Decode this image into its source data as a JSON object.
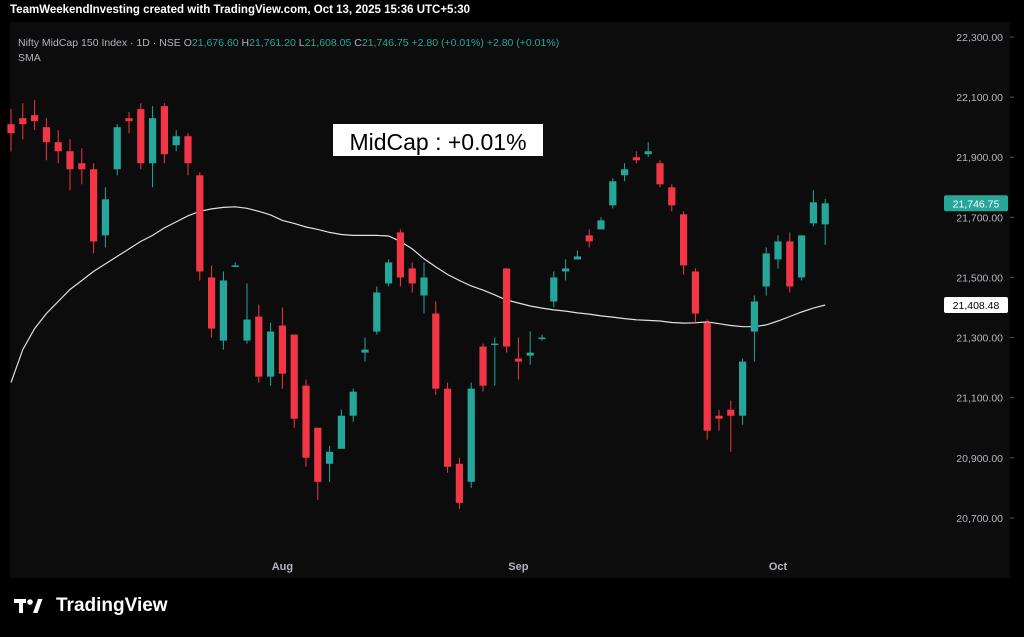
{
  "header": {
    "attribution": "TeamWeekendInvesting created with TradingView.com, Oct 13, 2025 15:36 UTC+5:30"
  },
  "legend": {
    "symbol": "Nifty MidCap 150 Index · 1D · NSE",
    "open_label": "O",
    "open": "21,676.60",
    "high_label": "H",
    "high": "21,761.20",
    "low_label": "L",
    "low": "21,608.05",
    "close_label": "C",
    "close": "21,746.75",
    "change": "+2.80 (+0.01%)",
    "change2": "+2.80 (+0.01%)",
    "indicator": "SMA"
  },
  "colors": {
    "up": "#26a69a",
    "down": "#f23645",
    "sma": "#e0e0e0",
    "background": "#0c0c0c"
  },
  "branding": {
    "logo_icon": "tradingview-logo-icon",
    "logo_text": "TradingView"
  },
  "chart_data": {
    "type": "candlestick",
    "title": "MidCap : +0.01%",
    "ylim": [
      20500,
      22350
    ],
    "y_ticks": [
      20700,
      20900,
      21100,
      21300,
      21500,
      21700,
      21900,
      22100,
      22300
    ],
    "y_tick_labels": [
      "20,700.00",
      "20,900.00",
      "21,100.00",
      "21,300.00",
      "21,500.00",
      "21,700.00",
      "21,900.00",
      "22,100.00",
      "22,300.00"
    ],
    "x_labels": [
      {
        "label": "Aug",
        "index": 23
      },
      {
        "label": "Sep",
        "index": 43
      },
      {
        "label": "Oct",
        "index": 65
      }
    ],
    "price_tags": [
      {
        "value": 21746.75,
        "label": "21,746.75",
        "style": "last-price"
      },
      {
        "value": 21408.48,
        "label": "21,408.48",
        "style": "sma"
      }
    ],
    "candles": [
      {
        "o": 22010,
        "h": 22060,
        "l": 21920,
        "c": 21980
      },
      {
        "o": 22030,
        "h": 22080,
        "l": 21960,
        "c": 22010
      },
      {
        "o": 22040,
        "h": 22090,
        "l": 21990,
        "c": 22020
      },
      {
        "o": 22000,
        "h": 22030,
        "l": 21890,
        "c": 21950
      },
      {
        "o": 21950,
        "h": 21990,
        "l": 21880,
        "c": 21920
      },
      {
        "o": 21920,
        "h": 21960,
        "l": 21790,
        "c": 21860
      },
      {
        "o": 21880,
        "h": 21930,
        "l": 21810,
        "c": 21860
      },
      {
        "o": 21860,
        "h": 21880,
        "l": 21580,
        "c": 21620
      },
      {
        "o": 21640,
        "h": 21800,
        "l": 21600,
        "c": 21760
      },
      {
        "o": 21860,
        "h": 22010,
        "l": 21840,
        "c": 22000
      },
      {
        "o": 22030,
        "h": 22050,
        "l": 21980,
        "c": 22020
      },
      {
        "o": 22060,
        "h": 22080,
        "l": 21860,
        "c": 21880
      },
      {
        "o": 21880,
        "h": 22070,
        "l": 21800,
        "c": 22030
      },
      {
        "o": 22070,
        "h": 22080,
        "l": 21880,
        "c": 21910
      },
      {
        "o": 21940,
        "h": 21990,
        "l": 21920,
        "c": 21970
      },
      {
        "o": 21970,
        "h": 21980,
        "l": 21840,
        "c": 21880
      },
      {
        "o": 21840,
        "h": 21850,
        "l": 21490,
        "c": 21520
      },
      {
        "o": 21500,
        "h": 21540,
        "l": 21300,
        "c": 21330
      },
      {
        "o": 21290,
        "h": 21520,
        "l": 21260,
        "c": 21490
      },
      {
        "o": 21540,
        "h": 21550,
        "l": 21535,
        "c": 21540
      },
      {
        "o": 21290,
        "h": 21480,
        "l": 21280,
        "c": 21360
      },
      {
        "o": 21370,
        "h": 21410,
        "l": 21150,
        "c": 21170
      },
      {
        "o": 21170,
        "h": 21350,
        "l": 21140,
        "c": 21320
      },
      {
        "o": 21340,
        "h": 21400,
        "l": 21130,
        "c": 21180
      },
      {
        "o": 21310,
        "h": 21310,
        "l": 21000,
        "c": 21030
      },
      {
        "o": 21140,
        "h": 21160,
        "l": 20870,
        "c": 20900
      },
      {
        "o": 21000,
        "h": 21000,
        "l": 20760,
        "c": 20820
      },
      {
        "o": 20880,
        "h": 20940,
        "l": 20820,
        "c": 20920
      },
      {
        "o": 20930,
        "h": 21060,
        "l": 20930,
        "c": 21040
      },
      {
        "o": 21040,
        "h": 21130,
        "l": 21020,
        "c": 21120
      },
      {
        "o": 21250,
        "h": 21300,
        "l": 21220,
        "c": 21260
      },
      {
        "o": 21320,
        "h": 21470,
        "l": 21310,
        "c": 21450
      },
      {
        "o": 21480,
        "h": 21560,
        "l": 21470,
        "c": 21550
      },
      {
        "o": 21650,
        "h": 21660,
        "l": 21470,
        "c": 21500
      },
      {
        "o": 21530,
        "h": 21550,
        "l": 21450,
        "c": 21480
      },
      {
        "o": 21440,
        "h": 21550,
        "l": 21380,
        "c": 21500
      },
      {
        "o": 21380,
        "h": 21420,
        "l": 21110,
        "c": 21130
      },
      {
        "o": 21130,
        "h": 21150,
        "l": 20850,
        "c": 20870
      },
      {
        "o": 20880,
        "h": 20900,
        "l": 20730,
        "c": 20750
      },
      {
        "o": 20820,
        "h": 21150,
        "l": 20800,
        "c": 21130
      },
      {
        "o": 21270,
        "h": 21280,
        "l": 21120,
        "c": 21140
      },
      {
        "o": 21280,
        "h": 21300,
        "l": 21140,
        "c": 21280
      },
      {
        "o": 21530,
        "h": 21530,
        "l": 21250,
        "c": 21270
      },
      {
        "o": 21230,
        "h": 21300,
        "l": 21160,
        "c": 21220
      },
      {
        "o": 21240,
        "h": 21320,
        "l": 21210,
        "c": 21250
      },
      {
        "o": 21300,
        "h": 21310,
        "l": 21290,
        "c": 21300
      },
      {
        "o": 21420,
        "h": 21520,
        "l": 21400,
        "c": 21500
      },
      {
        "o": 21520,
        "h": 21560,
        "l": 21490,
        "c": 21530
      },
      {
        "o": 21560,
        "h": 21590,
        "l": 21560,
        "c": 21570
      },
      {
        "o": 21640,
        "h": 21660,
        "l": 21600,
        "c": 21620
      },
      {
        "o": 21660,
        "h": 21700,
        "l": 21660,
        "c": 21690
      },
      {
        "o": 21740,
        "h": 21830,
        "l": 21730,
        "c": 21820
      },
      {
        "o": 21840,
        "h": 21880,
        "l": 21820,
        "c": 21860
      },
      {
        "o": 21900,
        "h": 21920,
        "l": 21880,
        "c": 21890
      },
      {
        "o": 21910,
        "h": 21950,
        "l": 21900,
        "c": 21920
      },
      {
        "o": 21880,
        "h": 21890,
        "l": 21800,
        "c": 21810
      },
      {
        "o": 21800,
        "h": 21810,
        "l": 21720,
        "c": 21740
      },
      {
        "o": 21710,
        "h": 21720,
        "l": 21510,
        "c": 21540
      },
      {
        "o": 21520,
        "h": 21530,
        "l": 21350,
        "c": 21380
      },
      {
        "o": 21350,
        "h": 21360,
        "l": 20960,
        "c": 20990
      },
      {
        "o": 21040,
        "h": 21060,
        "l": 20990,
        "c": 21030
      },
      {
        "o": 21060,
        "h": 21090,
        "l": 20920,
        "c": 21040
      },
      {
        "o": 21040,
        "h": 21230,
        "l": 21010,
        "c": 21220
      },
      {
        "o": 21320,
        "h": 21440,
        "l": 21220,
        "c": 21420
      },
      {
        "o": 21470,
        "h": 21600,
        "l": 21440,
        "c": 21580
      },
      {
        "o": 21560,
        "h": 21640,
        "l": 21530,
        "c": 21620
      },
      {
        "o": 21620,
        "h": 21650,
        "l": 21450,
        "c": 21470
      },
      {
        "o": 21500,
        "h": 21640,
        "l": 21490,
        "c": 21640
      },
      {
        "o": 21680,
        "h": 21790,
        "l": 21670,
        "c": 21750
      },
      {
        "o": 21676.6,
        "h": 21761.2,
        "l": 21608.05,
        "c": 21746.75
      }
    ],
    "sma": [
      21150,
      21260,
      21330,
      21380,
      21420,
      21460,
      21490,
      21520,
      21545,
      21570,
      21595,
      21620,
      21640,
      21665,
      21685,
      21705,
      21720,
      21728,
      21733,
      21735,
      21730,
      21720,
      21708,
      21690,
      21680,
      21668,
      21660,
      21650,
      21643,
      21640,
      21640,
      21640,
      21638,
      21620,
      21595,
      21562,
      21535,
      21510,
      21490,
      21472,
      21458,
      21442,
      21425,
      21415,
      21405,
      21398,
      21392,
      21388,
      21382,
      21378,
      21372,
      21368,
      21363,
      21359,
      21357,
      21355,
      21350,
      21348,
      21349,
      21352,
      21346,
      21340,
      21336,
      21336,
      21342,
      21355,
      21370,
      21385,
      21398,
      21408.48
    ]
  }
}
